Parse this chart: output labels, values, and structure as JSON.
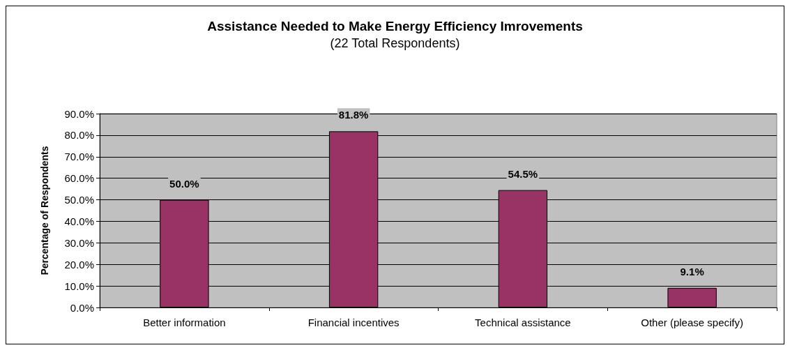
{
  "chart_data": {
    "type": "bar",
    "title": "Assistance Needed to Make Energy Efficiency Imrovements",
    "subtitle": "(22 Total Respondents)",
    "ylabel": "Percentage of Respondents",
    "categories": [
      "Better information",
      "Financial incentives",
      "Technical assistance",
      "Other (please specify)"
    ],
    "values": [
      50.0,
      81.8,
      54.5,
      9.1
    ],
    "value_labels": [
      "50.0%",
      "81.8%",
      "54.5%",
      "9.1%"
    ],
    "color": "#993366",
    "ylim": [
      0,
      90
    ],
    "yticks": [
      {
        "value": 0,
        "label": "0.0%"
      },
      {
        "value": 10,
        "label": "10.0%"
      },
      {
        "value": 20,
        "label": "20.0%"
      },
      {
        "value": 30,
        "label": "30.0%"
      },
      {
        "value": 40,
        "label": "40.0%"
      },
      {
        "value": 50,
        "label": "50.0%"
      },
      {
        "value": 60,
        "label": "60.0%"
      },
      {
        "value": 70,
        "label": "70.0%"
      },
      {
        "value": 80,
        "label": "80.0%"
      },
      {
        "value": 90,
        "label": "90.0%"
      }
    ],
    "grid": "y"
  }
}
